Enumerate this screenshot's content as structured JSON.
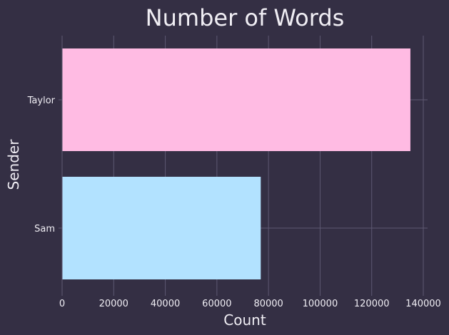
{
  "chart_data": {
    "type": "bar",
    "orientation": "horizontal",
    "title": "Number of Words",
    "xlabel": "Count",
    "ylabel": "Sender",
    "categories": [
      "Taylor",
      "Sam"
    ],
    "values": [
      135000,
      77000
    ],
    "colors": [
      "#ffbbe3",
      "#b2e2ff"
    ],
    "xlim": [
      0,
      140000
    ],
    "xticks": [
      0,
      20000,
      40000,
      60000,
      80000,
      100000,
      120000,
      140000
    ],
    "xtick_labels": [
      "0",
      "20000",
      "40000",
      "60000",
      "80000",
      "100000",
      "120000",
      "140000"
    ],
    "grid": true,
    "legend": "none"
  },
  "colors": {
    "background": "#342f44",
    "text": "#f0eef4",
    "grid": "#5e5872"
  }
}
